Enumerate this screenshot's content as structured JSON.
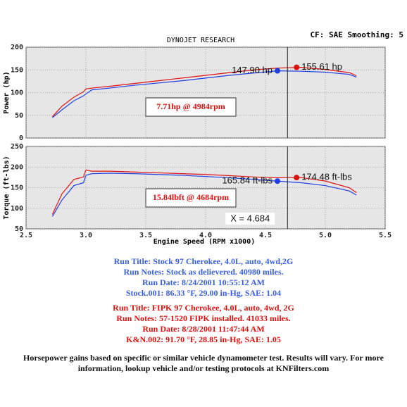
{
  "chart_data": [
    {
      "type": "line",
      "title": "DYNOJET RESEARCH",
      "settings_label": "CF: SAE  Smoothing: 5",
      "y_label": "Power (hp)",
      "ylim": [
        0,
        200
      ],
      "yticks": [
        0,
        50,
        100,
        150,
        200
      ],
      "grid": true,
      "x": [
        2.72,
        2.8,
        2.9,
        2.98,
        3.0,
        3.05,
        3.2,
        3.4,
        3.6,
        3.8,
        4.0,
        4.2,
        4.4,
        4.6,
        4.8,
        5.0,
        5.2,
        5.26
      ],
      "series": [
        {
          "color": "#1f3fe0",
          "values": [
            45,
            62,
            82,
            93,
            97,
            106,
            110,
            116,
            121,
            126,
            132,
            138,
            143,
            147.9,
            147,
            145,
            140,
            134
          ]
        },
        {
          "color": "#e01010",
          "values": [
            47,
            70,
            90,
            102,
            108,
            110,
            114,
            120,
            126,
            132,
            138,
            144,
            150,
            154,
            155.6,
            151,
            144,
            137
          ]
        }
      ],
      "markers": [
        {
          "x": 4.6,
          "y": 147.9,
          "label": "147.90 hp",
          "color": "#1f3fe0",
          "side": "left"
        },
        {
          "x": 4.76,
          "y": 155.61,
          "label": "155.61 hp",
          "color": "#e01010",
          "side": "right"
        }
      ],
      "gain_label": "7.71hp @ 4984rpm"
    },
    {
      "type": "line",
      "y_label": "Torque (ft-lbs)",
      "x_label": "Engine Speed (RPM x1000)",
      "xlim": [
        2.5,
        5.5
      ],
      "xticks": [
        2.5,
        {
          "value": 3,
          "label": "3.0"
        },
        3.5,
        {
          "value": 4,
          "label": "4.0"
        },
        4.5,
        {
          "value": 5,
          "label": "5.0"
        },
        5.5
      ],
      "ylim": [
        50,
        250
      ],
      "yticks": [
        50,
        100,
        150,
        200,
        250
      ],
      "grid": true,
      "x": [
        2.72,
        2.8,
        2.9,
        2.98,
        3.0,
        3.05,
        3.2,
        3.4,
        3.6,
        3.8,
        4.0,
        4.2,
        4.4,
        4.6,
        4.8,
        5.0,
        5.2,
        5.26
      ],
      "series": [
        {
          "color": "#1f3fe0",
          "values": [
            80,
            120,
            155,
            162,
            180,
            184,
            185,
            184,
            182,
            180,
            177,
            174,
            170,
            165.8,
            162,
            155,
            142,
            132
          ]
        },
        {
          "color": "#e01010",
          "values": [
            85,
            135,
            170,
            176,
            193,
            190,
            190,
            188,
            186,
            184,
            182,
            179,
            176,
            174,
            174.5,
            166,
            150,
            138
          ]
        }
      ],
      "markers": [
        {
          "x": 4.6,
          "y": 165.84,
          "label": "165.84 ft-lbs",
          "color": "#1f3fe0",
          "side": "left"
        },
        {
          "x": 4.76,
          "y": 174.48,
          "label": "174.48 ft-lbs",
          "color": "#e01010",
          "side": "right"
        }
      ],
      "gain_label": "15.84lbft @ 4684rpm",
      "cursor": {
        "value": 4.684,
        "label": "X = 4.684"
      }
    }
  ],
  "notes": {
    "stock": [
      "Run Title: Stock 97 Cherokee, 4.0L, auto, 4wd,2G",
      "Run Notes: Stock as delievered. 40980 miles.",
      "Run Date: 8/24/2001 10:55:12 AM",
      "Stock.001: 86.33 °F, 29.00 in-Hg, SAE: 1.04"
    ],
    "kn": [
      "Run Title: FIPK 97 Cherokee, 4.0L, auto, 4wd, 2G",
      "Run Notes: 57-1520 FIPK installed. 41033 miles.",
      "Run Date: 8/28/2001 11:47:44 AM",
      "K&N.002: 91.70 °F, 28.85 in-Hg, SAE: 1.05"
    ],
    "footer": [
      "Horsepower gains based on specific or similar vehicle dynamometer test. Results will vary. For more",
      "information, lookup vehicle and/or testing protocols at KNFilters.com"
    ]
  }
}
